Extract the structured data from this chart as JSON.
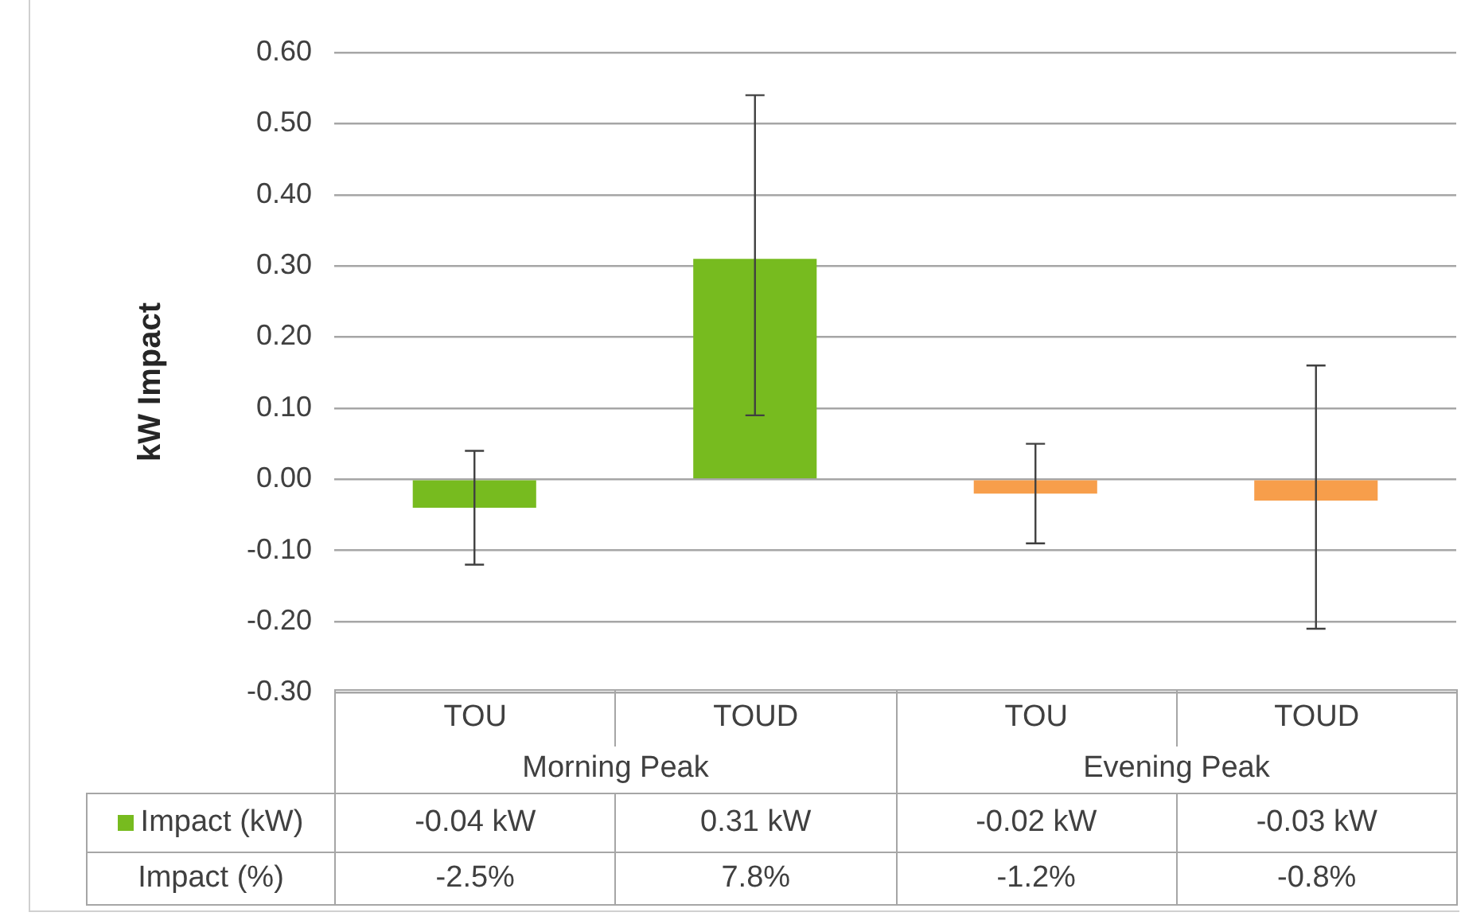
{
  "chart_data": {
    "type": "bar",
    "ylabel": "kW Impact",
    "categories": [
      "TOU",
      "TOUD",
      "TOU",
      "TOUD"
    ],
    "series": [
      {
        "name": "Impact (kW)",
        "color": "#77bb1f",
        "colors": [
          "#77bb1f",
          "#77bb1f",
          "#f79e4b",
          "#f79e4b"
        ],
        "values": [
          -0.04,
          0.31,
          -0.02,
          -0.03
        ],
        "errors": [
          [
            -0.12,
            0.04
          ],
          [
            0.09,
            0.54
          ],
          [
            -0.09,
            0.05
          ],
          [
            -0.21,
            0.16
          ]
        ],
        "value_labels": [
          "-0.04 kW",
          "0.31 kW",
          "-0.02 kW",
          "-0.03 kW"
        ]
      }
    ],
    "ylim": [
      -0.3,
      0.6
    ],
    "yticks": [
      {
        "value": -0.3,
        "label": "-0.30"
      },
      {
        "value": -0.2,
        "label": "-0.20"
      },
      {
        "value": -0.1,
        "label": "-0.10"
      },
      {
        "value": 0,
        "label": "0.00"
      },
      {
        "value": 0.1,
        "label": "0.10"
      },
      {
        "value": 0.2,
        "label": "0.20"
      },
      {
        "value": 0.3,
        "label": "0.30"
      },
      {
        "value": 0.4,
        "label": "0.40"
      },
      {
        "value": 0.5,
        "label": "0.50"
      },
      {
        "value": 0.6,
        "label": "0.60"
      }
    ],
    "grid": "y",
    "legend": "bottom left",
    "annotations": [
      "Morning Peak",
      "Evening Peak",
      "Impact (%)",
      "-2.5%",
      "7.8%",
      "-1.2%",
      "-0.8%"
    ]
  }
}
